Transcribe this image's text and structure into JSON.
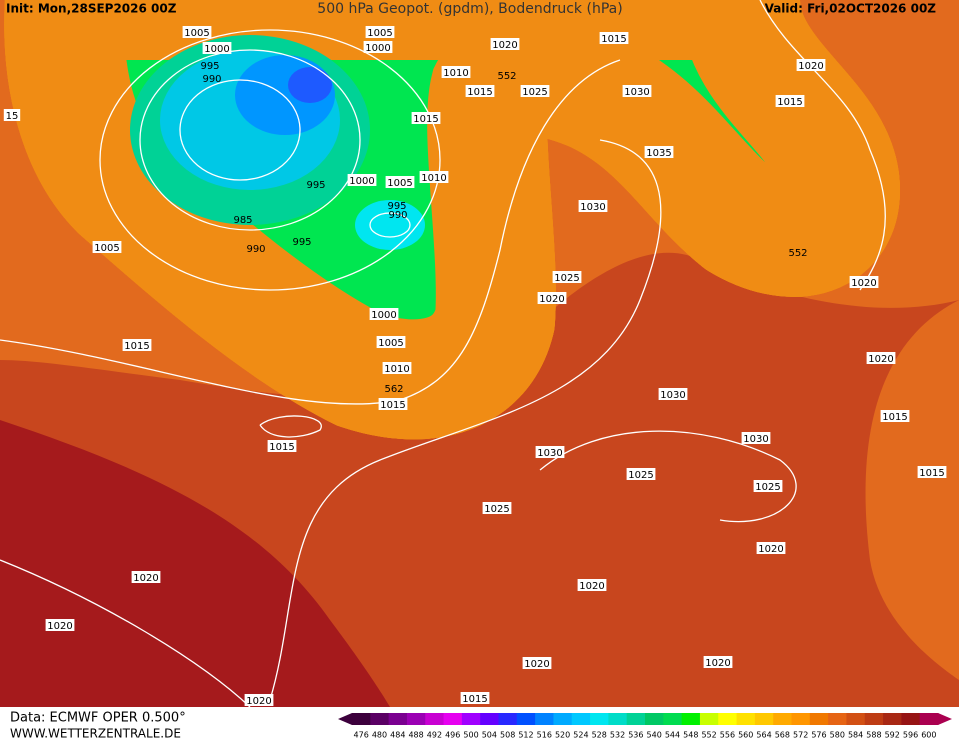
{
  "header": {
    "init": "Init: Mon,28SEP2026 00Z",
    "title": "500 hPa Geopot. (gpdm), Bodendruck (hPa)",
    "valid": "Valid: Fri,02OCT2026 00Z"
  },
  "contour_labels": [
    "1005",
    "1000",
    "995",
    "990",
    "1005",
    "1000",
    "1010",
    "1015",
    "552",
    "1020",
    "1015",
    "1025",
    "1030",
    "1015",
    "1035",
    "995",
    "1000",
    "1005",
    "1010",
    "995",
    "990",
    "985",
    "990",
    "995",
    "1005",
    "1030",
    "1025",
    "1020",
    "1000",
    "1005",
    "1010",
    "562",
    "1015",
    "1015",
    "1015",
    "1030",
    "1030",
    "1030",
    "1025",
    "1025",
    "1025",
    "1020",
    "1015",
    "552",
    "1020",
    "1020",
    "1015",
    "1015",
    "1020",
    "1020",
    "1020",
    "1020",
    "1020",
    "1020",
    "1020",
    "1015",
    "15"
  ],
  "footer": {
    "data_source": "Data: ECMWF OPER 0.500°",
    "website": "WWW.WETTERZENTRALE.DE"
  },
  "colorbar": {
    "labels": [
      476,
      480,
      484,
      488,
      492,
      496,
      500,
      504,
      508,
      512,
      516,
      520,
      524,
      528,
      532,
      536,
      540,
      544,
      548,
      552,
      556,
      560,
      564,
      568,
      572,
      576,
      580,
      584,
      588,
      592,
      596,
      600
    ],
    "colors": [
      "#3c003c",
      "#5a0064",
      "#7a0090",
      "#9b00b4",
      "#c800d2",
      "#e600f0",
      "#a000ff",
      "#6400ff",
      "#2828ff",
      "#0050ff",
      "#0082ff",
      "#00aaff",
      "#00c8ff",
      "#00e6f0",
      "#00dcc8",
      "#00d296",
      "#00c864",
      "#00dc50",
      "#00f000",
      "#c8ff00",
      "#ffff00",
      "#ffe100",
      "#ffc800",
      "#ffaa00",
      "#ff9600",
      "#f07800",
      "#e66414",
      "#d25014",
      "#be3c14",
      "#a82814",
      "#961414",
      "#aa0050"
    ]
  }
}
